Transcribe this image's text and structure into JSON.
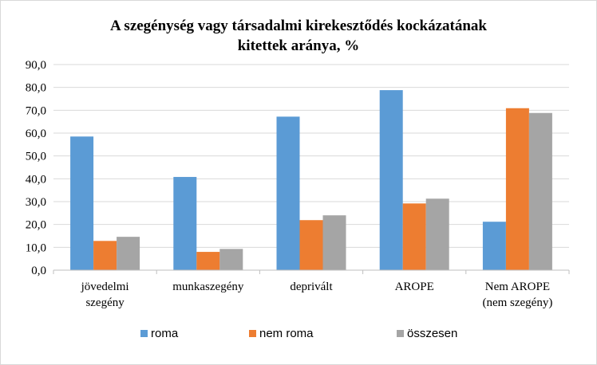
{
  "chart_data": {
    "type": "bar",
    "title_lines": [
      "A szegénység vagy társadalmi kirekesztődés kockázatának",
      "kitettek aránya, %"
    ],
    "categories": [
      [
        "jövedelmi",
        "szegény"
      ],
      [
        "munkaszegény"
      ],
      [
        "deprivált"
      ],
      [
        "AROPE"
      ],
      [
        "Nem AROPE",
        "(nem szegény)"
      ]
    ],
    "series": [
      {
        "name": "roma",
        "color": "#5b9bd5",
        "values": [
          58.5,
          40.8,
          67.2,
          78.8,
          21.2
        ]
      },
      {
        "name": "nem roma",
        "color": "#ed7d31",
        "values": [
          12.8,
          8.0,
          21.9,
          29.2,
          70.9
        ]
      },
      {
        "name": "összesen",
        "color": "#a5a5a5",
        "values": [
          14.6,
          9.3,
          24.0,
          31.3,
          68.8
        ]
      }
    ],
    "ylim": [
      0,
      90
    ],
    "yticks": [
      "0,0",
      "10,0",
      "20,0",
      "30,0",
      "40,0",
      "50,0",
      "60,0",
      "70,0",
      "80,0",
      "90,0"
    ],
    "grid": true,
    "legend_position": "bottom"
  }
}
